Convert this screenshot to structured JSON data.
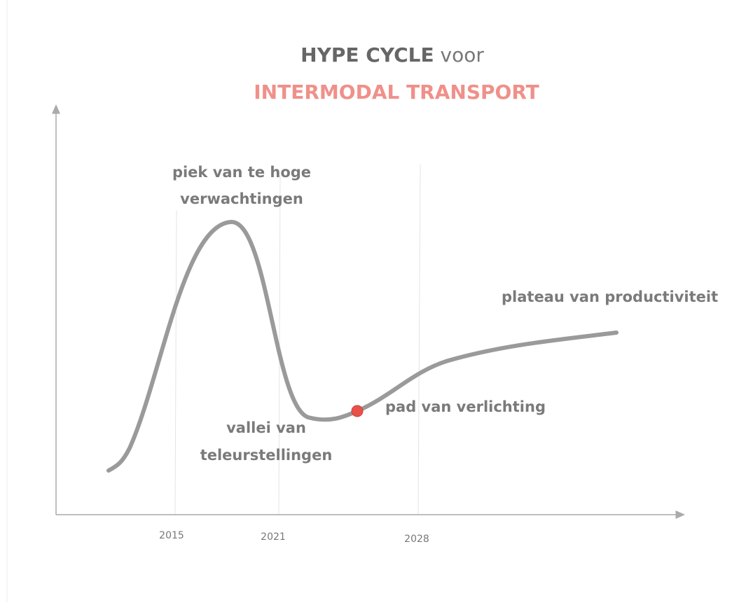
{
  "title": {
    "bold": "HYPE CYCLE",
    "rest": "voor",
    "subtitle": "INTERMODAL TRANSPORT"
  },
  "phases": {
    "peak": [
      "piek van te hoge",
      "verwachtingen"
    ],
    "plateau": "plateau van productiviteit",
    "slope": "pad van verlichting",
    "trough": [
      "vallei van",
      "teleurstellingen"
    ]
  },
  "years": [
    "2015",
    "2021",
    "2028"
  ]
}
